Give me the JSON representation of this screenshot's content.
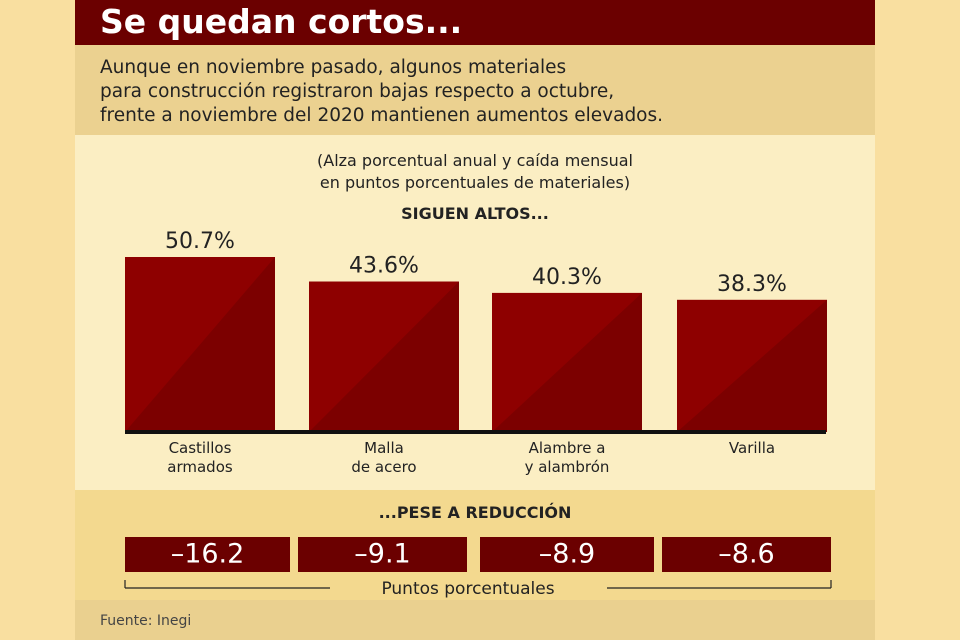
{
  "header": {
    "title": "Se quedan cortos...",
    "subtitle": "Aunque en noviembre pasado, algunos materiales\npara construcción registraron bajas respecto a octubre,\nfrente a noviembre del 2020 mantienen aumentos elevados."
  },
  "chart_data": {
    "type": "bar",
    "note": "(Alza porcentual anual y caída mensual\nen puntos porcentuales de materiales)",
    "title": "SIGUEN ALTOS...",
    "categories": [
      "Castillos\narmados",
      "Malla\nde acero",
      "Alambre a\ny alambrón",
      "Varilla"
    ],
    "values": [
      50.7,
      43.6,
      40.3,
      38.3
    ],
    "value_labels": [
      "50.7%",
      "43.6%",
      "40.3%",
      "38.3%"
    ],
    "color": "#8e0000"
  },
  "reduction": {
    "title": "...PESE A REDUCCIÓN",
    "values": [
      -16.2,
      -9.1,
      -8.9,
      -8.6
    ],
    "value_labels": [
      "–16.2",
      "–9.1",
      "–8.9",
      "–8.6"
    ],
    "unit": "Puntos porcentuales"
  },
  "footer": {
    "source": "Fuente: Inegi"
  }
}
